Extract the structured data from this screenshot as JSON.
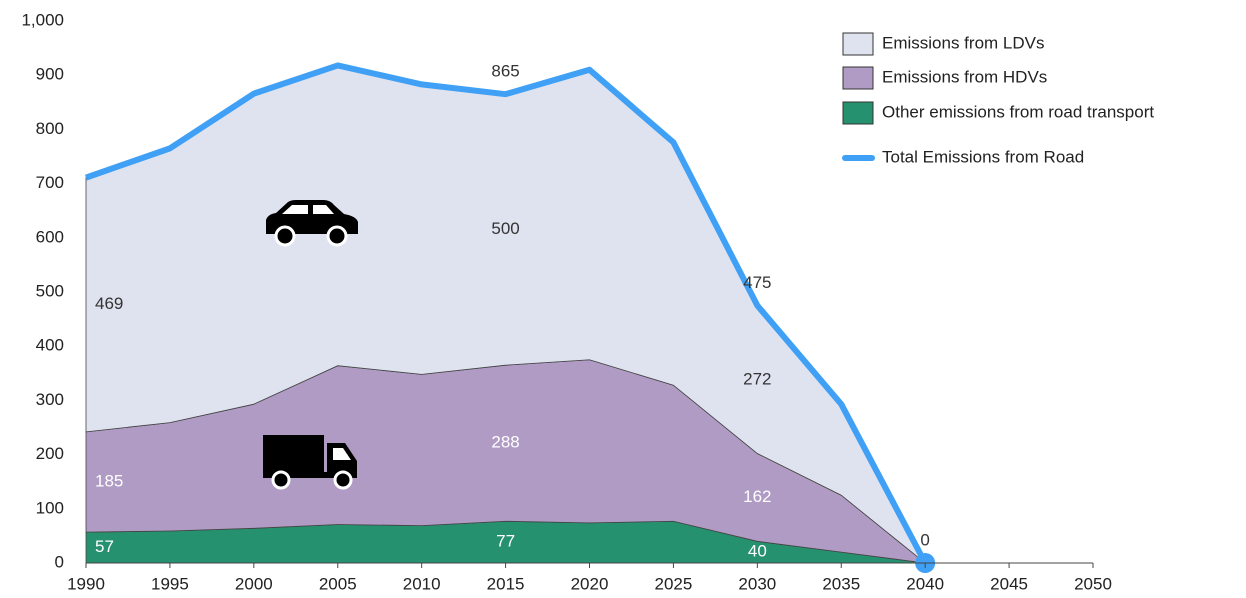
{
  "chart_data": {
    "type": "stacked_area_line",
    "x": [
      1990,
      1995,
      2000,
      2005,
      2010,
      2015,
      2020,
      2025,
      2030,
      2035,
      2040
    ],
    "series": [
      {
        "name": "Other emissions from road transport",
        "kind": "area",
        "color": "#26916f",
        "label_color": "#ffffff",
        "values": [
          57,
          59,
          64,
          71,
          69,
          77,
          74,
          77,
          40,
          20,
          0
        ],
        "value_labels": [
          "57",
          null,
          null,
          null,
          null,
          "77",
          null,
          null,
          "40",
          null,
          null
        ]
      },
      {
        "name": "Emissions from HDVs",
        "kind": "area",
        "color": "#b09bc4",
        "label_color": "#ffffff",
        "values": [
          185,
          200,
          229,
          293,
          279,
          288,
          301,
          251,
          162,
          105,
          0
        ],
        "value_labels": [
          "185",
          null,
          null,
          null,
          null,
          "288",
          null,
          null,
          "162",
          null,
          null
        ]
      },
      {
        "name": "Emissions from LDVs",
        "kind": "area",
        "color": "#dfe3ef",
        "label_color": "#333333",
        "values": [
          469,
          505,
          573,
          554,
          535,
          500,
          535,
          448,
          272,
          168,
          0
        ],
        "value_labels": [
          "469",
          null,
          null,
          null,
          null,
          "500",
          null,
          null,
          "272",
          null,
          null
        ]
      },
      {
        "name": "Total Emissions from Road",
        "kind": "line",
        "color": "#3fa0f5",
        "label_color": "#333333",
        "values": [
          711,
          765,
          866,
          918,
          883,
          865,
          910,
          776,
          475,
          293,
          0
        ],
        "value_labels": [
          null,
          null,
          null,
          null,
          null,
          "865",
          null,
          null,
          "475",
          null,
          "0"
        ]
      }
    ],
    "xlim": [
      1990,
      2050
    ],
    "xticks": [
      1990,
      1995,
      2000,
      2005,
      2010,
      2015,
      2020,
      2025,
      2030,
      2035,
      2040,
      2045,
      2050
    ],
    "ylim": [
      0,
      1000
    ],
    "yticks": [
      0,
      100,
      200,
      300,
      400,
      500,
      600,
      700,
      800,
      900,
      {
        "value": 1000,
        "label": "1,000"
      }
    ]
  }
}
